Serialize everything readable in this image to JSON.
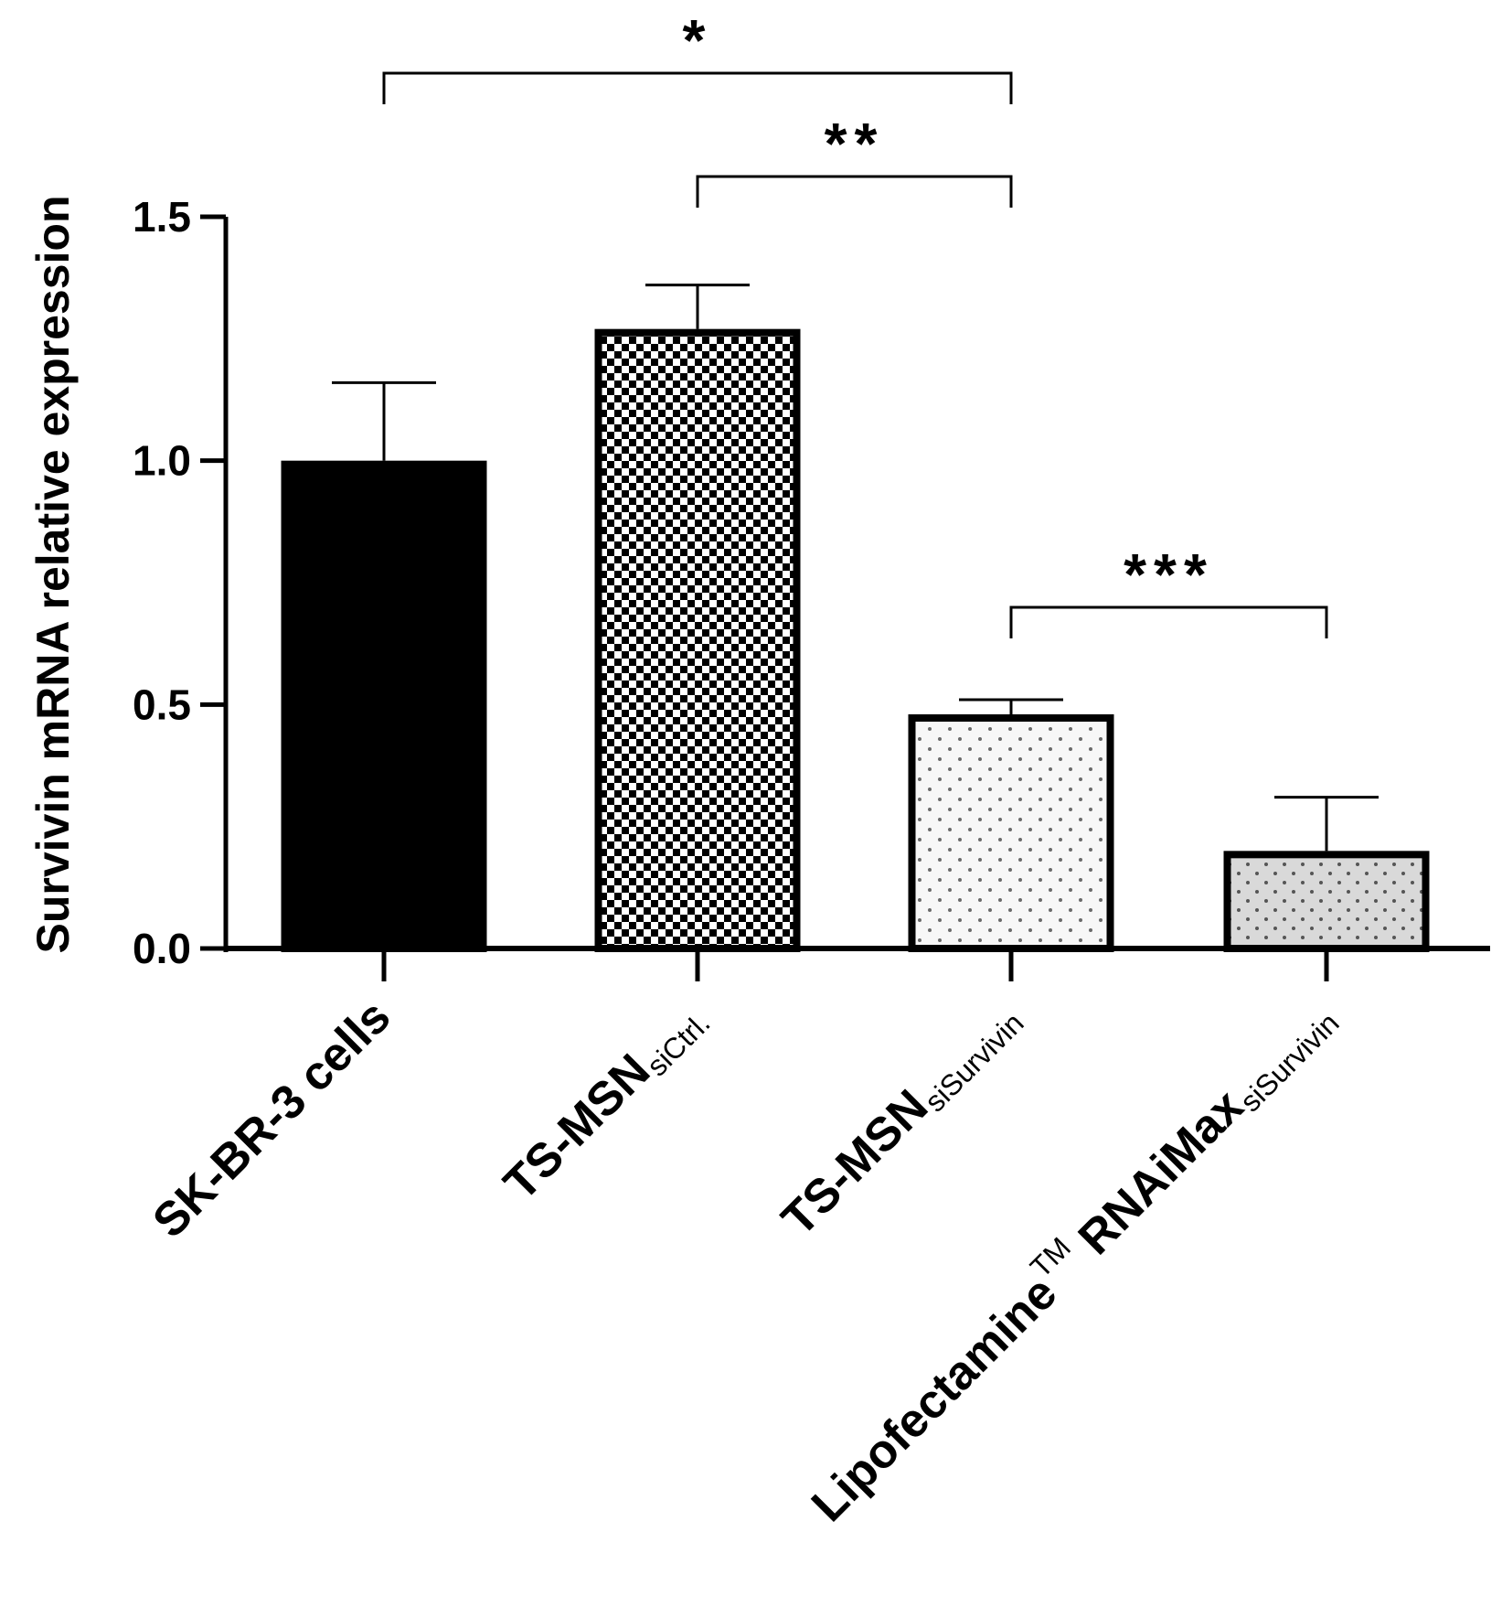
{
  "chart_data": {
    "type": "bar",
    "ylabel": "Survivin mRNA relative expression",
    "ylim": [
      0,
      1.5
    ],
    "yticks": [
      {
        "value": 0.0,
        "label": "0.0"
      },
      {
        "value": 0.5,
        "label": "0.5"
      },
      {
        "value": 1.0,
        "label": "1.0"
      },
      {
        "value": 1.5,
        "label": "1.5"
      }
    ],
    "categories": [
      {
        "main": "SK-BR-3 cells",
        "sub": ""
      },
      {
        "main": "TS-MSN",
        "sub": "siCtrl."
      },
      {
        "main": "TS-MSN",
        "sub": "siSurvivin"
      },
      {
        "main": "Lipofectamine",
        "tm": "TM",
        "main2": "RNAiMax",
        "sub": "siSurvivin"
      }
    ],
    "values": [
      1.0,
      1.27,
      0.48,
      0.2
    ],
    "errors": [
      0.16,
      0.09,
      0.03,
      0.11
    ],
    "fills": [
      "solid",
      "checker",
      "dots-light",
      "dots-gray"
    ],
    "colors": {
      "solid": "#000000",
      "dots_gray_bg": "#d9d9d9",
      "dots_light_bg": "#f7f7f7"
    },
    "significance": [
      {
        "from": 0,
        "to": 2,
        "label": "*"
      },
      {
        "from": 1,
        "to": 2,
        "label": "**"
      },
      {
        "from": 2,
        "to": 3,
        "label": "***"
      }
    ]
  }
}
